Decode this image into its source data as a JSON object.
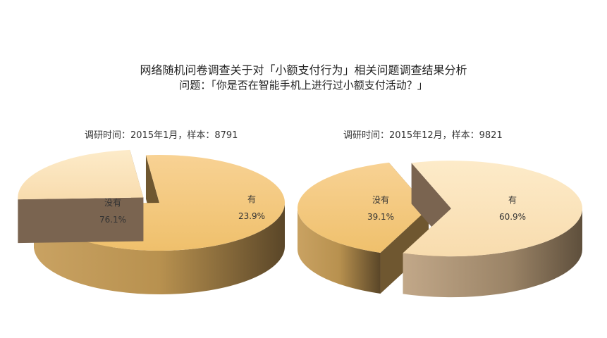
{
  "title": "网络随机问卷调查关于对「小额支付行为」相关问题调查结果分析",
  "subtitle": "问题：「你是否在智能手机上进行过小额支付活动？」",
  "colors": {
    "no": "#f3c87a",
    "yes": "#fbe0b5",
    "no_side": "#9c7a3f",
    "yes_side": "#8a7258"
  },
  "chart_data": [
    {
      "type": "pie",
      "caption": "调研时间：2015年1月，样本：8791",
      "categories": [
        "没有",
        "有"
      ],
      "values": [
        76.1,
        23.9
      ],
      "value_labels": [
        "76.1%",
        "23.9%"
      ]
    },
    {
      "type": "pie",
      "caption": "调研时间：2015年12月，样本：9821",
      "categories": [
        "没有",
        "有"
      ],
      "values": [
        39.1,
        60.9
      ],
      "value_labels": [
        "39.1%",
        "60.9%"
      ]
    }
  ]
}
